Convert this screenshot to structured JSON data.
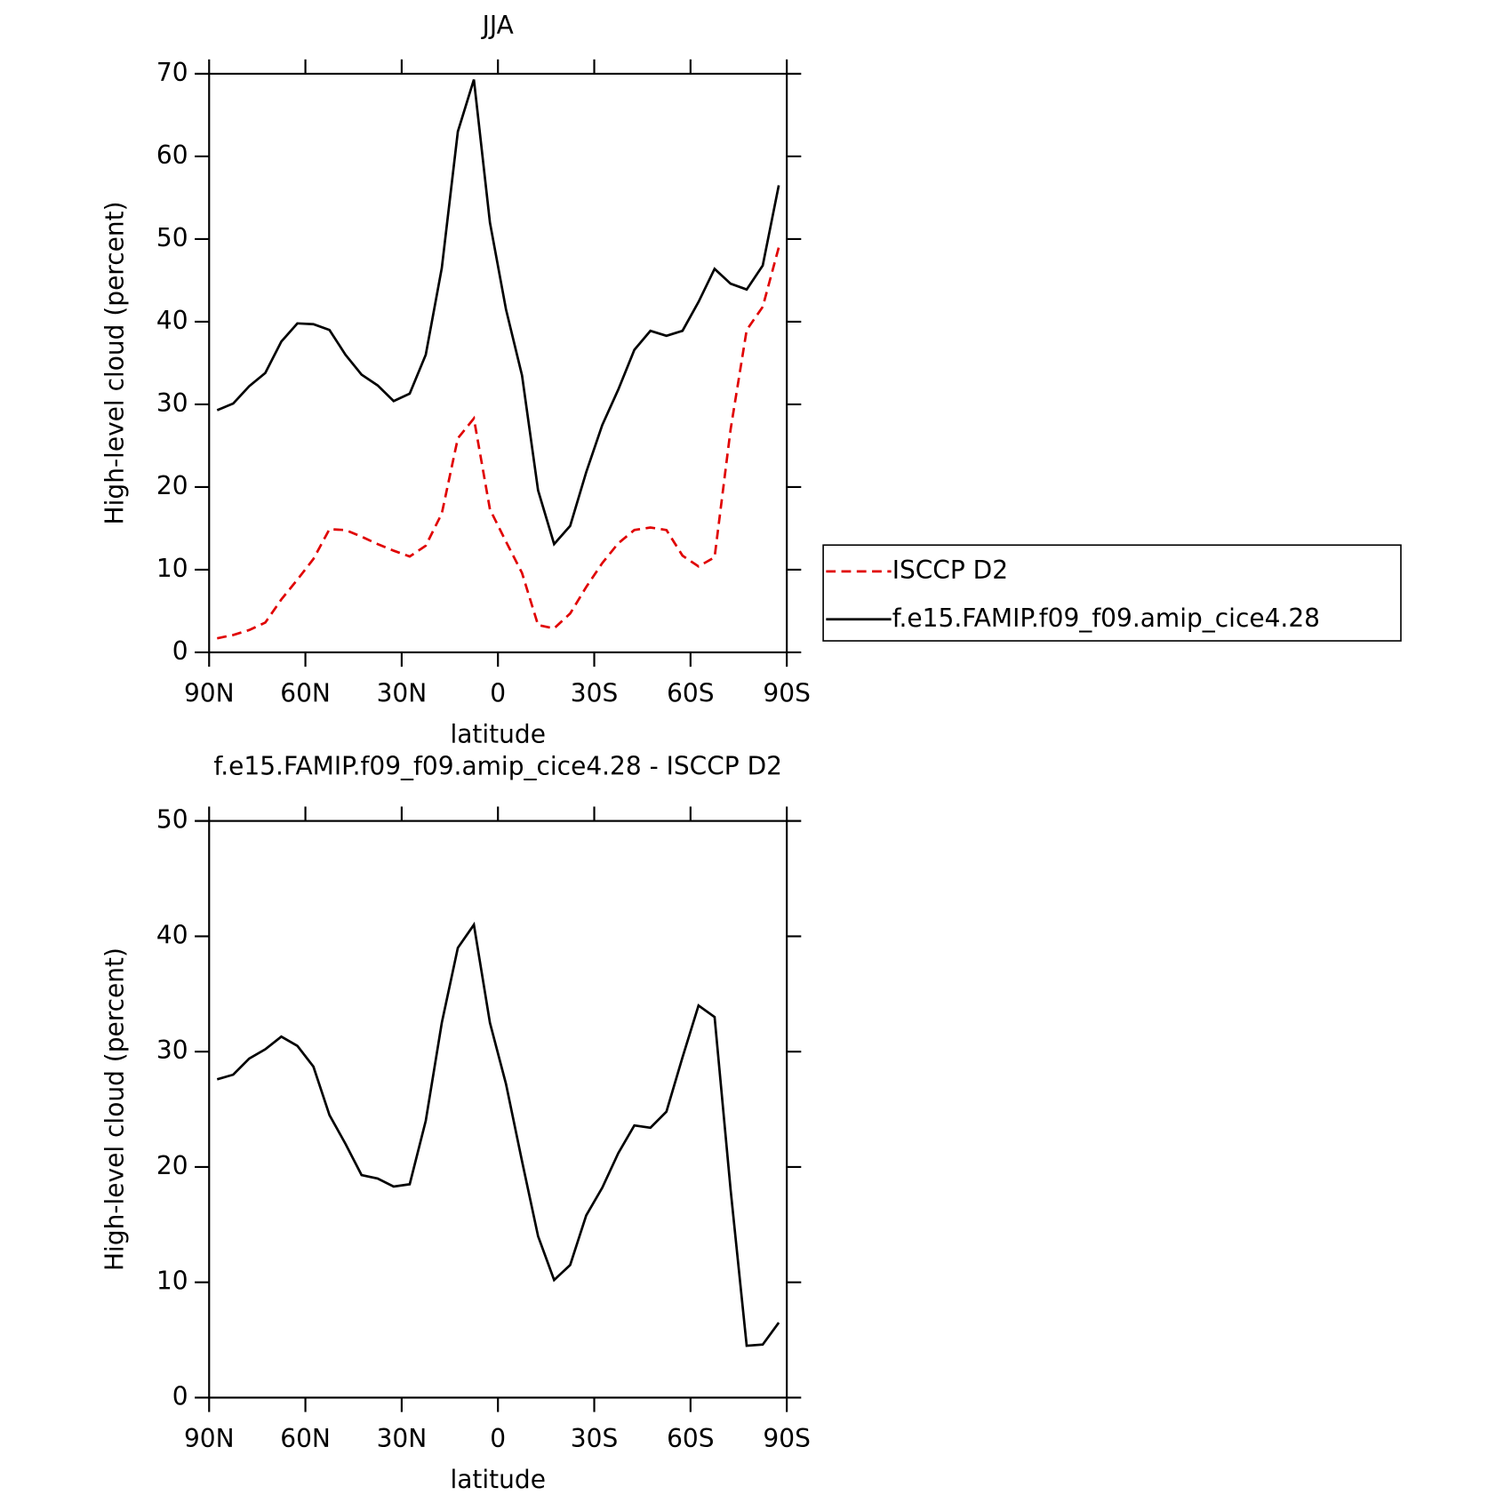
{
  "chart_data": [
    {
      "type": "line",
      "title": "JJA",
      "x_label": "latitude",
      "y_label": "High-level cloud (percent)",
      "x": [
        87.5,
        82.5,
        77.5,
        72.5,
        67.5,
        62.5,
        57.5,
        52.5,
        47.5,
        42.5,
        37.5,
        32.5,
        27.5,
        22.5,
        17.5,
        12.5,
        7.5,
        2.5,
        -2.5,
        -7.5,
        -12.5,
        -17.5,
        -22.5,
        -27.5,
        -32.5,
        -37.5,
        -42.5,
        -47.5,
        -52.5,
        -57.5,
        -62.5,
        -67.5,
        -72.5,
        -77.5,
        -82.5,
        -87.5
      ],
      "series": [
        {
          "name": "ISCCP D2",
          "color": "#e00000",
          "style": "dashed",
          "values": [
            1.7,
            2.1,
            2.7,
            3.6,
            6.4,
            8.8,
            11.3,
            14.9,
            14.8,
            14,
            13.1,
            12.3,
            11.6,
            12.9,
            16.8,
            25.9,
            28.3,
            17.3,
            13.4,
            9.6,
            3.3,
            2.9,
            4.7,
            7.9,
            10.8,
            13.2,
            14.8,
            15.1,
            14.8,
            11.7,
            10.4,
            11.5,
            27,
            39,
            41.8,
            49
          ]
        },
        {
          "name": "f.e15.FAMIP.f09_f09.amip_cice4.28",
          "color": "#000000",
          "style": "solid",
          "values": [
            29.3,
            30.1,
            32.2,
            33.8,
            37.6,
            39.8,
            39.7,
            39,
            36,
            33.6,
            32.3,
            30.4,
            31.3,
            36,
            46.5,
            63,
            69.3,
            52,
            41.5,
            33.5,
            19.6,
            13.1,
            15.3,
            21.8,
            27.5,
            31.8,
            36.6,
            38.9,
            38.3,
            38.9,
            42.4,
            46.4,
            44.6,
            43.9,
            46.8,
            56.5
          ]
        }
      ],
      "xlim": [
        90,
        -90
      ],
      "xticks": [
        {
          "value": 90,
          "label": "90N"
        },
        {
          "value": 60,
          "label": "60N"
        },
        {
          "value": 30,
          "label": "30N"
        },
        0,
        {
          "value": -30,
          "label": "30S"
        },
        {
          "value": -60,
          "label": "60S"
        },
        {
          "value": -90,
          "label": "90S"
        }
      ],
      "ylim": [
        0,
        70
      ],
      "yticks": [
        0,
        10,
        20,
        30,
        40,
        50,
        60,
        70
      ],
      "legend": "right"
    },
    {
      "type": "line",
      "title": "f.e15.FAMIP.f09_f09.amip_cice4.28 - ISCCP D2",
      "x_label": "latitude",
      "y_label": "High-level cloud (percent)",
      "x": [
        87.5,
        82.5,
        77.5,
        72.5,
        67.5,
        62.5,
        57.5,
        52.5,
        47.5,
        42.5,
        37.5,
        32.5,
        27.5,
        22.5,
        17.5,
        12.5,
        7.5,
        2.5,
        -2.5,
        -7.5,
        -12.5,
        -17.5,
        -22.5,
        -27.5,
        -32.5,
        -37.5,
        -42.5,
        -47.5,
        -52.5,
        -57.5,
        -62.5,
        -67.5,
        -72.5,
        -77.5,
        -82.5,
        -87.5
      ],
      "series": [
        {
          "color": "#000000",
          "style": "solid",
          "values": [
            27.6,
            28,
            29.4,
            30.2,
            31.3,
            30.5,
            28.7,
            24.5,
            22,
            19.3,
            19,
            18.3,
            18.5,
            24,
            32.5,
            39,
            41,
            32.5,
            27.2,
            20.5,
            14,
            10.2,
            11.5,
            15.8,
            18.2,
            21.2,
            23.6,
            23.4,
            24.8,
            29.5,
            34,
            33,
            18,
            4.5,
            4.6,
            6.5
          ]
        }
      ],
      "xlim": [
        90,
        -90
      ],
      "xticks": [
        {
          "value": 90,
          "label": "90N"
        },
        {
          "value": 60,
          "label": "60N"
        },
        {
          "value": 30,
          "label": "30N"
        },
        0,
        {
          "value": -30,
          "label": "30S"
        },
        {
          "value": -60,
          "label": "60S"
        },
        {
          "value": -90,
          "label": "90S"
        }
      ],
      "ylim": [
        0,
        50
      ],
      "yticks": [
        0,
        10,
        20,
        30,
        40,
        50
      ]
    }
  ]
}
